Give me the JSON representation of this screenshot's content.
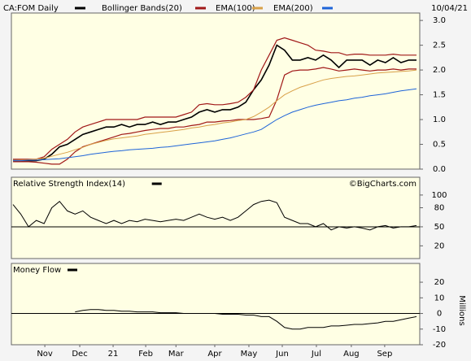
{
  "date": "10/04/21",
  "x_axis": {
    "xlim": [
      0,
      52
    ],
    "xticks": [
      {
        "value": 4.1,
        "label": "Nov"
      },
      {
        "value": 8.6,
        "label": "Dec"
      },
      {
        "value": 12.9,
        "label": "21"
      },
      {
        "value": 17.1,
        "label": "Feb"
      },
      {
        "value": 21,
        "label": "Mar"
      },
      {
        "value": 26,
        "label": "Apr"
      },
      {
        "value": 30.4,
        "label": "May"
      },
      {
        "value": 34.7,
        "label": "Jun"
      },
      {
        "value": 39.1,
        "label": "Jul"
      },
      {
        "value": 43.6,
        "label": "Aug"
      },
      {
        "value": 47.9,
        "label": "Sep"
      }
    ]
  },
  "chart_data": [
    {
      "type": "line",
      "title": "CA:FOM Daily",
      "ylim": [
        0,
        3.15
      ],
      "yticks": [
        {
          "value": 0,
          "label": "0.0"
        },
        0.5,
        {
          "value": 1,
          "label": "1.0"
        },
        1.5,
        {
          "value": 2,
          "label": "2.0"
        },
        2.5,
        {
          "value": 3,
          "label": "3.0"
        }
      ],
      "series": [
        {
          "name": "CA:FOM Daily",
          "color": "#000000",
          "values": [
            0.17,
            0.17,
            0.17,
            0.17,
            0.2,
            0.3,
            0.45,
            0.5,
            0.6,
            0.7,
            0.75,
            0.8,
            0.85,
            0.85,
            0.9,
            0.85,
            0.9,
            0.9,
            0.95,
            0.9,
            0.95,
            0.95,
            1.0,
            1.05,
            1.15,
            1.2,
            1.15,
            1.2,
            1.2,
            1.25,
            1.35,
            1.6,
            1.8,
            2.1,
            2.5,
            2.4,
            2.2,
            2.2,
            2.25,
            2.2,
            2.3,
            2.2,
            2.05,
            2.2,
            2.2,
            2.2,
            2.1,
            2.2,
            2.15,
            2.25,
            2.15,
            2.2,
            2.2
          ]
        },
        {
          "name": "Bollinger Bands(20)",
          "color": "#a01818",
          "upper": [
            0.2,
            0.2,
            0.2,
            0.2,
            0.25,
            0.4,
            0.5,
            0.6,
            0.75,
            0.85,
            0.9,
            0.95,
            1.0,
            1.0,
            1.0,
            1.0,
            1.0,
            1.05,
            1.05,
            1.05,
            1.05,
            1.05,
            1.1,
            1.15,
            1.3,
            1.32,
            1.3,
            1.3,
            1.32,
            1.35,
            1.45,
            1.6,
            2.0,
            2.3,
            2.6,
            2.65,
            2.6,
            2.55,
            2.5,
            2.4,
            2.38,
            2.35,
            2.35,
            2.3,
            2.32,
            2.32,
            2.3,
            2.3,
            2.3,
            2.32,
            2.3,
            2.3,
            2.3
          ],
          "lower": [
            0.15,
            0.15,
            0.15,
            0.14,
            0.12,
            0.1,
            0.1,
            0.2,
            0.35,
            0.45,
            0.5,
            0.55,
            0.6,
            0.65,
            0.7,
            0.72,
            0.75,
            0.78,
            0.8,
            0.82,
            0.82,
            0.85,
            0.85,
            0.88,
            0.9,
            0.95,
            0.95,
            0.97,
            0.98,
            1.0,
            1.0,
            1.0,
            1.02,
            1.05,
            1.4,
            1.9,
            1.98,
            2.0,
            2.0,
            2.02,
            2.05,
            2.02,
            1.98,
            2.0,
            2.02,
            2.0,
            1.98,
            2.0,
            2.0,
            2.02,
            2.0,
            2.02,
            2.02
          ]
        },
        {
          "name": "EMA(100)",
          "color": "#d8a048",
          "values": [
            0.17,
            0.18,
            0.19,
            0.2,
            0.22,
            0.26,
            0.3,
            0.34,
            0.39,
            0.44,
            0.5,
            0.54,
            0.58,
            0.61,
            0.63,
            0.65,
            0.67,
            0.7,
            0.72,
            0.74,
            0.76,
            0.78,
            0.8,
            0.83,
            0.85,
            0.88,
            0.9,
            0.93,
            0.95,
            0.98,
            1.0,
            1.06,
            1.15,
            1.25,
            1.38,
            1.5,
            1.58,
            1.65,
            1.7,
            1.75,
            1.8,
            1.83,
            1.85,
            1.87,
            1.88,
            1.9,
            1.92,
            1.94,
            1.95,
            1.96,
            1.97,
            1.98,
            2.0
          ]
        },
        {
          "name": "EMA(200)",
          "color": "#1e64d8",
          "values": [
            0.17,
            0.17,
            0.18,
            0.18,
            0.19,
            0.2,
            0.21,
            0.23,
            0.25,
            0.27,
            0.3,
            0.32,
            0.34,
            0.36,
            0.37,
            0.39,
            0.4,
            0.41,
            0.42,
            0.44,
            0.45,
            0.47,
            0.49,
            0.51,
            0.53,
            0.55,
            0.57,
            0.6,
            0.63,
            0.67,
            0.71,
            0.75,
            0.8,
            0.9,
            1.0,
            1.08,
            1.15,
            1.2,
            1.25,
            1.29,
            1.32,
            1.35,
            1.38,
            1.4,
            1.43,
            1.45,
            1.48,
            1.5,
            1.52,
            1.55,
            1.58,
            1.6,
            1.62
          ]
        }
      ]
    },
    {
      "type": "line",
      "title": "Relative Strength Index(14)",
      "annotation": "©BigCharts.com",
      "ylim": [
        0,
        128
      ],
      "yticks": [
        20,
        50,
        80,
        100
      ],
      "reference": 50,
      "series": [
        {
          "color": "#000000",
          "values": [
            85,
            70,
            50,
            60,
            55,
            80,
            90,
            75,
            70,
            75,
            65,
            60,
            55,
            60,
            55,
            60,
            58,
            62,
            60,
            58,
            60,
            62,
            60,
            65,
            70,
            65,
            62,
            65,
            60,
            65,
            75,
            85,
            90,
            92,
            88,
            65,
            60,
            55,
            55,
            50,
            55,
            45,
            50,
            48,
            50,
            48,
            45,
            50,
            52,
            48,
            50,
            50,
            52
          ]
        }
      ]
    },
    {
      "type": "line",
      "title": "Money Flow",
      "y_label": "Millions",
      "ylim": [
        -20,
        32
      ],
      "yticks": [
        -20,
        -10,
        0,
        10,
        20
      ],
      "reference": 0,
      "series": [
        {
          "color": "#000000",
          "values": [
            null,
            null,
            null,
            null,
            null,
            null,
            null,
            null,
            1,
            2,
            2.5,
            2.5,
            2,
            2,
            1.5,
            1.5,
            1,
            1,
            1,
            0.5,
            0.5,
            0.5,
            0,
            0,
            0,
            0,
            0,
            -0.5,
            -0.5,
            -0.5,
            -1,
            -1,
            -2,
            -2,
            -5,
            -9,
            -10,
            -10,
            -9,
            -9,
            -9,
            -8,
            -8,
            -7.5,
            -7,
            -7,
            -6.5,
            -6,
            -5,
            -5,
            -4,
            -3,
            -2
          ]
        }
      ]
    }
  ]
}
